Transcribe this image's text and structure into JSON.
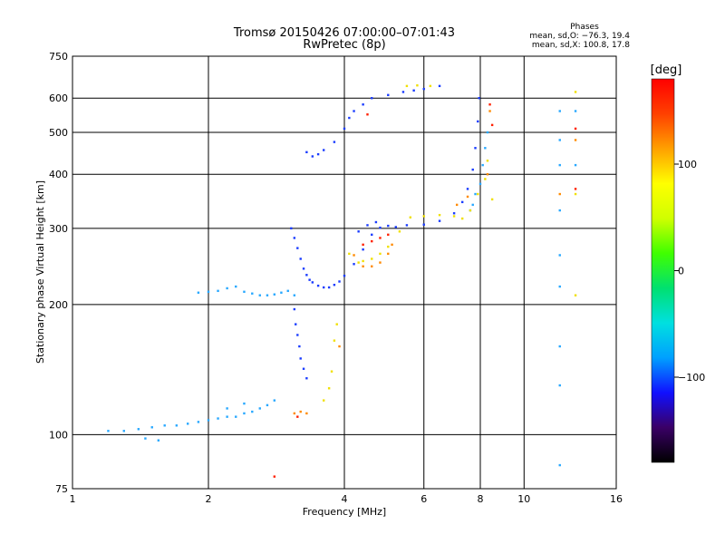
{
  "chart_data": {
    "type": "scatter",
    "title": "Tromsø 20150426 07:00:00–07:01:43",
    "subtitle": "RwPretec (8p)",
    "xlabel": "Frequency [MHz]",
    "ylabel": "Stationary phase Virtual Height [km]",
    "x_scale": "log",
    "y_scale": "log",
    "xlim": [
      1,
      16
    ],
    "ylim": [
      75,
      750
    ],
    "x_ticks": [
      1,
      2,
      4,
      6,
      8,
      10,
      16
    ],
    "y_ticks": [
      75,
      100,
      200,
      300,
      400,
      500,
      600,
      750
    ],
    "grid": true,
    "phases_info": {
      "heading": "Phases",
      "line_o": "mean, sd,O: −76.3, 19.4",
      "line_x": "mean, sd,X: 100.8, 17.8"
    },
    "colorbar": {
      "label": "[deg]",
      "range": [
        -180,
        180
      ],
      "ticks": [
        100,
        0,
        -100
      ],
      "tick_labels": [
        "100",
        "0",
        "−100"
      ],
      "colors": [
        "#000000",
        "#3a0066",
        "#1010ff",
        "#00a0ff",
        "#00e0e0",
        "#00e070",
        "#40ff00",
        "#d0ff00",
        "#ffff00",
        "#ffa000",
        "#ff4000",
        "#ff0000"
      ]
    },
    "series": [
      {
        "phase": -100,
        "color": "#1a3cff",
        "points": [
          [
            3.05,
            300
          ],
          [
            3.1,
            285
          ],
          [
            3.15,
            270
          ],
          [
            3.2,
            255
          ],
          [
            3.25,
            242
          ],
          [
            3.3,
            234
          ],
          [
            3.35,
            228
          ],
          [
            3.4,
            225
          ],
          [
            3.5,
            221
          ],
          [
            3.6,
            219
          ],
          [
            3.7,
            219
          ],
          [
            3.8,
            222
          ],
          [
            3.9,
            226
          ],
          [
            4.0,
            233
          ],
          [
            4.2,
            248
          ],
          [
            4.4,
            268
          ],
          [
            4.6,
            290
          ],
          [
            4.8,
            301
          ],
          [
            5.0,
            304
          ],
          [
            5.5,
            305
          ],
          [
            6.0,
            306
          ],
          [
            6.5,
            312
          ],
          [
            7.0,
            325
          ],
          [
            7.3,
            345
          ],
          [
            7.5,
            370
          ],
          [
            7.7,
            410
          ],
          [
            7.8,
            460
          ],
          [
            7.9,
            530
          ],
          [
            7.95,
            600
          ],
          [
            3.3,
            450
          ],
          [
            3.4,
            440
          ],
          [
            3.5,
            445
          ],
          [
            3.6,
            455
          ],
          [
            3.8,
            475
          ],
          [
            4.0,
            510
          ],
          [
            4.1,
            540
          ],
          [
            4.2,
            560
          ],
          [
            4.4,
            580
          ],
          [
            4.6,
            600
          ],
          [
            5.0,
            610
          ],
          [
            5.4,
            620
          ],
          [
            5.7,
            625
          ],
          [
            6.0,
            630
          ],
          [
            6.5,
            640
          ],
          [
            3.1,
            195
          ],
          [
            3.12,
            180
          ],
          [
            3.15,
            170
          ],
          [
            3.18,
            160
          ],
          [
            3.2,
            150
          ],
          [
            3.25,
            142
          ],
          [
            3.3,
            135
          ],
          [
            4.3,
            295
          ],
          [
            4.5,
            305
          ],
          [
            4.7,
            310
          ],
          [
            5.2,
            302
          ]
        ]
      },
      {
        "phase": -60,
        "color": "#28a8ff",
        "points": [
          [
            1.2,
            102
          ],
          [
            1.3,
            102
          ],
          [
            1.4,
            103
          ],
          [
            1.5,
            104
          ],
          [
            1.6,
            105
          ],
          [
            1.7,
            105
          ],
          [
            1.8,
            106
          ],
          [
            1.9,
            107
          ],
          [
            2.0,
            108
          ],
          [
            2.1,
            109
          ],
          [
            2.2,
            110
          ],
          [
            2.3,
            110
          ],
          [
            2.4,
            112
          ],
          [
            2.5,
            113
          ],
          [
            2.6,
            115
          ],
          [
            2.7,
            117
          ],
          [
            2.8,
            120
          ],
          [
            1.45,
            98
          ],
          [
            1.55,
            97
          ],
          [
            2.2,
            115
          ],
          [
            2.4,
            118
          ],
          [
            1.9,
            213
          ],
          [
            2.0,
            214
          ],
          [
            2.1,
            215
          ],
          [
            2.2,
            218
          ],
          [
            2.3,
            220
          ],
          [
            2.4,
            214
          ],
          [
            2.5,
            212
          ],
          [
            2.6,
            210
          ],
          [
            2.7,
            210
          ],
          [
            2.8,
            211
          ],
          [
            2.9,
            213
          ],
          [
            3.0,
            215
          ],
          [
            3.1,
            210
          ],
          [
            7.6,
            330
          ],
          [
            7.7,
            340
          ],
          [
            7.8,
            360
          ],
          [
            8.0,
            380
          ],
          [
            8.1,
            420
          ],
          [
            8.2,
            460
          ],
          [
            8.3,
            500
          ],
          [
            12,
            560
          ],
          [
            12,
            480
          ],
          [
            12,
            420
          ],
          [
            12,
            330
          ],
          [
            12,
            260
          ],
          [
            12,
            220
          ],
          [
            12,
            160
          ],
          [
            12,
            130
          ],
          [
            12,
            85
          ],
          [
            13,
            560
          ],
          [
            13,
            420
          ]
        ]
      },
      {
        "phase": 100,
        "color": "#f0e000",
        "points": [
          [
            4.3,
            250
          ],
          [
            4.4,
            252
          ],
          [
            4.6,
            255
          ],
          [
            4.8,
            262
          ],
          [
            5.0,
            272
          ],
          [
            5.3,
            295
          ],
          [
            5.6,
            318
          ],
          [
            6.0,
            320
          ],
          [
            6.5,
            322
          ],
          [
            7.0,
            320
          ],
          [
            7.3,
            316
          ],
          [
            7.6,
            330
          ],
          [
            7.9,
            360
          ],
          [
            8.2,
            390
          ],
          [
            8.3,
            430
          ],
          [
            3.6,
            120
          ],
          [
            3.7,
            128
          ],
          [
            3.75,
            140
          ],
          [
            3.8,
            165
          ],
          [
            3.85,
            180
          ],
          [
            5.5,
            640
          ],
          [
            5.8,
            642
          ],
          [
            6.2,
            640
          ],
          [
            13,
            620
          ],
          [
            13,
            360
          ],
          [
            13,
            210
          ],
          [
            8.5,
            350
          ],
          [
            4.1,
            262
          ]
        ]
      },
      {
        "phase": 140,
        "color": "#ff8a00",
        "points": [
          [
            4.2,
            260
          ],
          [
            4.4,
            245
          ],
          [
            4.6,
            245
          ],
          [
            4.8,
            250
          ],
          [
            5.0,
            262
          ],
          [
            5.1,
            275
          ],
          [
            3.1,
            112
          ],
          [
            3.2,
            113
          ],
          [
            3.3,
            112
          ],
          [
            3.9,
            160
          ],
          [
            8.3,
            400
          ],
          [
            8.4,
            560
          ],
          [
            7.1,
            340
          ],
          [
            7.5,
            355
          ],
          [
            13,
            480
          ],
          [
            12,
            360
          ]
        ]
      },
      {
        "phase": 170,
        "color": "#ff2000",
        "points": [
          [
            4.4,
            275
          ],
          [
            4.6,
            280
          ],
          [
            4.8,
            285
          ],
          [
            5.0,
            290
          ],
          [
            8.4,
            580
          ],
          [
            8.5,
            520
          ],
          [
            3.15,
            110
          ],
          [
            2.8,
            80
          ],
          [
            4.5,
            550
          ],
          [
            13,
            510
          ],
          [
            13,
            370
          ]
        ]
      }
    ]
  }
}
